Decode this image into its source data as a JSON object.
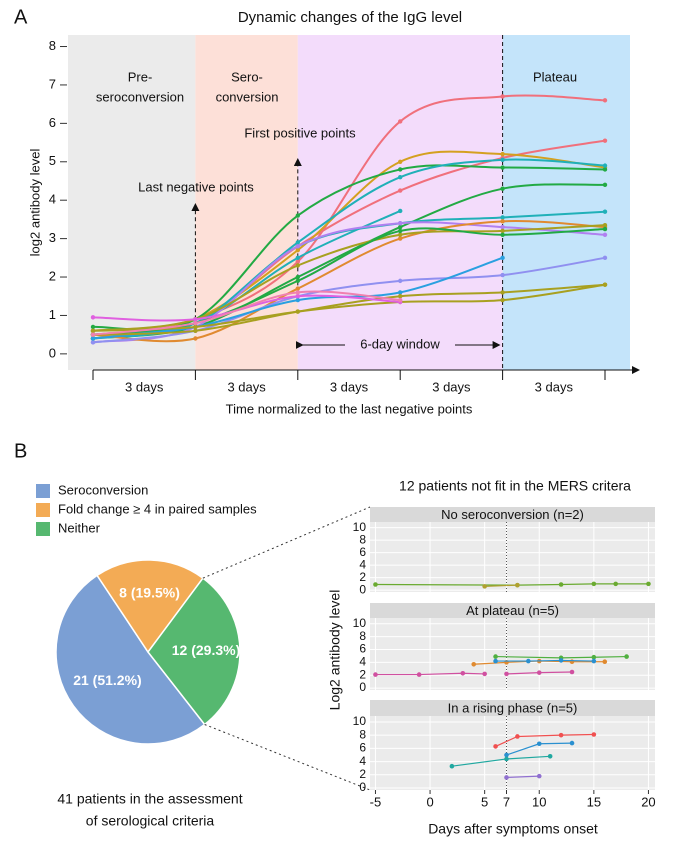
{
  "panel_labels": [
    "A",
    "B"
  ],
  "chart_data": [
    {
      "type": "line",
      "title": "Dynamic changes of the IgG level",
      "ylabel": "log2 antibody level",
      "xlabel": "Time normalized to the last negative points",
      "categories": [
        null,
        null,
        null,
        null,
        null,
        null
      ],
      "ylim": [
        -0.42,
        8.3
      ],
      "yticks": [
        0,
        1,
        2,
        3,
        4,
        5,
        6,
        7,
        8
      ],
      "regions": [
        {
          "label": [
            "Pre-",
            "seroconversion"
          ],
          "color": "#ebebeb"
        },
        {
          "label": [
            "Sero-",
            "conversion"
          ],
          "color": "#fde0d8"
        },
        {
          "color": "#f3dcfb"
        },
        {
          "label": [
            "Plateau"
          ],
          "color": "#c4e4fa"
        }
      ],
      "annotations": [
        "Last negative points",
        "First positive points",
        "6-day window"
      ],
      "interval_labels": [
        "3 days",
        "3 days",
        "3 days",
        "3 days",
        "3 days"
      ],
      "series": [
        {
          "color": "#f0707c",
          "values": [
            0.6,
            0.9,
            2.4,
            6.05,
            6.7,
            6.6
          ]
        },
        {
          "color": "#f0707c",
          "values": [
            0.5,
            0.8,
            2.8,
            4.25,
            5.1,
            5.55
          ]
        },
        {
          "color": "#d4a020",
          "values": [
            0.4,
            0.9,
            2.7,
            5.0,
            5.2,
            4.85
          ]
        },
        {
          "color": "#22aa44",
          "values": [
            0.7,
            0.9,
            3.6,
            4.8,
            4.85,
            4.8
          ]
        },
        {
          "color": "#20b0b8",
          "values": [
            0.5,
            0.8,
            2.9,
            4.6,
            5.05,
            4.9
          ]
        },
        {
          "color": "#22aa44",
          "values": [
            0.4,
            0.7,
            2.0,
            3.3,
            4.3,
            4.4
          ]
        },
        {
          "color": "#20b0b8",
          "values": [
            0.5,
            0.8,
            2.5,
            3.72,
            null,
            null
          ]
        },
        {
          "color": "#20b0b8",
          "values": [
            0.4,
            0.8,
            2.8,
            3.4,
            3.55,
            3.7
          ]
        },
        {
          "color": "#b080f0",
          "values": [
            0.3,
            0.7,
            2.8,
            3.4,
            3.3,
            3.1
          ]
        },
        {
          "color": "#e08a30",
          "values": [
            0.5,
            0.4,
            1.7,
            3.0,
            3.45,
            3.3
          ]
        },
        {
          "color": "#a8a020",
          "values": [
            0.6,
            0.9,
            2.3,
            3.1,
            3.2,
            3.35
          ]
        },
        {
          "color": "#22aa44",
          "values": [
            0.5,
            0.8,
            1.9,
            3.2,
            3.1,
            3.25
          ]
        },
        {
          "color": "#9090f0",
          "values": [
            0.3,
            0.6,
            1.5,
            1.9,
            2.05,
            2.5
          ]
        },
        {
          "color": "#2aa0e0",
          "values": [
            0.4,
            0.7,
            1.4,
            1.6,
            2.5,
            null
          ]
        },
        {
          "color": "#a8a020",
          "values": [
            0.5,
            0.6,
            1.1,
            1.5,
            1.6,
            1.8
          ]
        },
        {
          "color": "#a8a020",
          "values": [
            0.6,
            0.7,
            1.1,
            1.35,
            1.4,
            1.8
          ]
        },
        {
          "color": "#e060e0",
          "values": [
            0.95,
            0.9,
            1.5,
            1.35,
            null,
            null
          ]
        },
        {
          "color": "#f080b0",
          "values": [
            0.5,
            0.8,
            1.6,
            1.4,
            null,
            null
          ]
        }
      ]
    },
    {
      "type": "pie",
      "categories": [
        "Seroconversion",
        "Fold change ≥ 4 in paired samples",
        "Neither"
      ],
      "values": [
        21,
        8,
        12
      ],
      "value_labels": [
        "21 (51.2%)",
        "8 (19.5%)",
        "12 (29.3%)"
      ],
      "colors": [
        "#7b9fd4",
        "#f3ab55",
        "#56b870"
      ],
      "caption": [
        "41 patients in the assessment",
        "of serological criteria"
      ]
    },
    {
      "type": "line",
      "title": "12  patients not fit in the MERS critera",
      "ylabel": "Log2 antibody level",
      "xlabel": "Days after symptoms onset",
      "xlim": [
        -5.5,
        20.6
      ],
      "xticks": [
        -5,
        0,
        5,
        7,
        10,
        15,
        20
      ],
      "ylim": [
        -0.3,
        10.9
      ],
      "yticks": [
        0,
        2,
        4,
        6,
        8,
        10
      ],
      "facets": [
        {
          "title": "No seroconversion (n=2)",
          "series": [
            {
              "color": "#6aaa30",
              "x": [
                -5,
                8,
                12,
                15,
                17,
                20
              ],
              "values": [
                0.9,
                0.8,
                0.9,
                1.0,
                1.0,
                1.0
              ]
            },
            {
              "color": "#b0a030",
              "x": [
                5,
                8
              ],
              "values": [
                0.6,
                0.8
              ]
            }
          ]
        },
        {
          "title": "At plateau (n=5)",
          "series": [
            {
              "color": "#d050a0",
              "x": [
                -5,
                -1,
                3,
                5
              ],
              "values": [
                2.1,
                2.1,
                2.3,
                2.2
              ]
            },
            {
              "color": "#d050a0",
              "x": [
                7,
                10,
                13
              ],
              "values": [
                2.2,
                2.4,
                2.5
              ]
            },
            {
              "color": "#e08a30",
              "x": [
                4,
                7,
                10,
                13,
                16
              ],
              "values": [
                3.7,
                4.0,
                4.2,
                4.1,
                4.1
              ]
            },
            {
              "color": "#50b040",
              "x": [
                6,
                12,
                15,
                18
              ],
              "values": [
                4.9,
                4.7,
                4.8,
                4.9
              ]
            },
            {
              "color": "#2a90d0",
              "x": [
                6,
                9,
                12,
                15
              ],
              "values": [
                4.2,
                4.2,
                4.3,
                4.2
              ]
            }
          ]
        },
        {
          "title": "In a rising phase (n=5)",
          "series": [
            {
              "color": "#f05050",
              "x": [
                6,
                8,
                12,
                15
              ],
              "values": [
                6.3,
                7.8,
                8.0,
                8.1
              ]
            },
            {
              "color": "#2a90d0",
              "x": [
                7,
                10,
                13
              ],
              "values": [
                5.0,
                6.7,
                6.8
              ]
            },
            {
              "color": "#20a8a0",
              "x": [
                2,
                7,
                11
              ],
              "values": [
                3.3,
                4.4,
                4.8
              ]
            },
            {
              "color": "#9070d0",
              "x": [
                7,
                10
              ],
              "values": [
                1.6,
                1.8
              ]
            }
          ]
        }
      ]
    }
  ]
}
